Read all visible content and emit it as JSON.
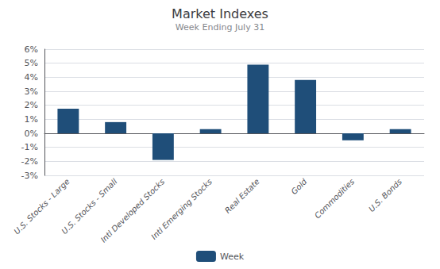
{
  "chart_data": {
    "type": "bar",
    "title": "Market Indexes",
    "subtitle": "Week Ending July 31",
    "categories": [
      "U.S. Stocks - Large",
      "U.S. Stocks - Small",
      "Intl Developed Stocks",
      "Intl Emerging Stocks",
      "Real Estate",
      "Gold",
      "Commodities",
      "U.S. Bonds"
    ],
    "series": [
      {
        "name": "Week",
        "color": "#1F4E79",
        "values": [
          0.0175,
          0.008,
          -0.019,
          0.003,
          0.049,
          0.038,
          -0.005,
          0.003
        ]
      }
    ],
    "ylim": [
      -0.03,
      0.06
    ],
    "yticks": [
      {
        "value": -0.03,
        "label": "-3%"
      },
      {
        "value": -0.02,
        "label": "-2%"
      },
      {
        "value": -0.01,
        "label": "-1%"
      },
      {
        "value": 0.0,
        "label": "0%"
      },
      {
        "value": 0.01,
        "label": "1%"
      },
      {
        "value": 0.02,
        "label": "2%"
      },
      {
        "value": 0.03,
        "label": "3%"
      },
      {
        "value": 0.04,
        "label": "4%"
      },
      {
        "value": 0.05,
        "label": "5%"
      },
      {
        "value": 0.06,
        "label": "6%"
      }
    ],
    "grid": true,
    "legend": "bottom"
  }
}
